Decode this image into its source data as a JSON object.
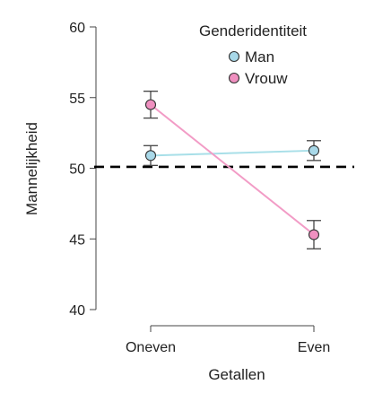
{
  "chart_data": {
    "type": "line",
    "title": "",
    "xlabel": "Getallen",
    "ylabel": "Mannelijkheid",
    "categories": [
      "Oneven",
      "Even"
    ],
    "ylim": [
      40,
      60
    ],
    "yticks": [
      40,
      45,
      50,
      55,
      60
    ],
    "reference_line": {
      "y": 50.1,
      "style": "dashed",
      "color": "#000000"
    },
    "grid": false,
    "legend": {
      "title": "Genderidentiteit",
      "position": "top-right"
    },
    "series": [
      {
        "name": "Man",
        "color": "#a8d8e8",
        "line_color": "#a8dfe8",
        "values": [
          50.9,
          51.25
        ],
        "error_low": [
          50.2,
          50.55
        ],
        "error_high": [
          51.6,
          51.95
        ]
      },
      {
        "name": "Vrouw",
        "color": "#f090c0",
        "line_color": "#f29cc6",
        "values": [
          54.5,
          45.3
        ],
        "error_low": [
          53.55,
          44.3
        ],
        "error_high": [
          55.45,
          46.3
        ]
      }
    ]
  }
}
